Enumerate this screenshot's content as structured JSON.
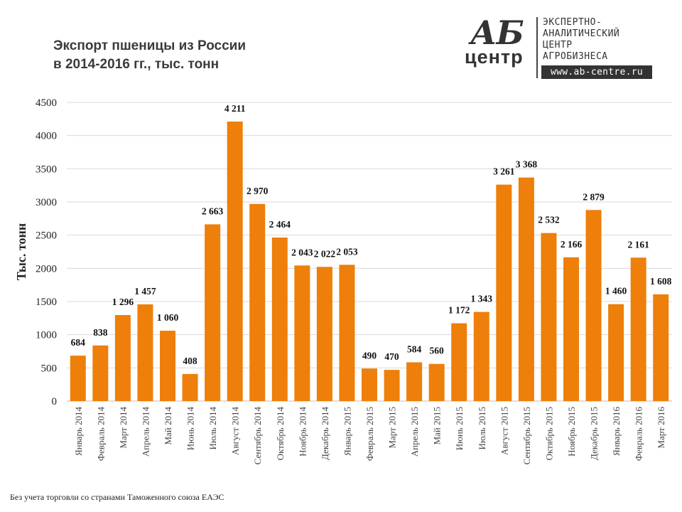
{
  "header": {
    "title_line1": "Экспорт пшеницы из России",
    "title_line2": "в 2014-2016 гг., тыс. тонн"
  },
  "logo": {
    "ab": "АБ",
    "centr": "центр",
    "line1": "ЭКСПЕРТНО-",
    "line2": "АНАЛИТИЧЕСКИЙ",
    "line3": "ЦЕНТР",
    "line4": "АГРОБИЗНЕСА",
    "url": "www.ab-centre.ru"
  },
  "footnote": "Без учета торговли со странами Таможенного союза ЕАЭС",
  "colors": {
    "bar": "#EE7F0A",
    "grid": "#D9D9D9",
    "text": "#222222"
  },
  "chart_data": {
    "type": "bar",
    "title": "Экспорт пшеницы из России в 2014-2016 гг., тыс. тонн",
    "xlabel": "",
    "ylabel": "Тыс. тонн",
    "ylim": [
      0,
      4500
    ],
    "yticks": [
      0,
      500,
      1000,
      1500,
      2000,
      2500,
      3000,
      3500,
      4000,
      4500
    ],
    "grid": true,
    "categories": [
      "Январь 2014",
      "Февраль 2014",
      "Март 2014",
      "Апрель 2014",
      "Май 2014",
      "Июнь 2014",
      "Июль 2014",
      "Август 2014",
      "Сентябрь 2014",
      "Октябрь 2014",
      "Ноябрь 2014",
      "Декабрь 2014",
      "Январь 2015",
      "Февраль 2015",
      "Март 2015",
      "Апрель 2015",
      "Май 2015",
      "Июнь 2015",
      "Июль 2015",
      "Август 2015",
      "Сентябрь 2015",
      "Октябрь 2015",
      "Ноябрь 2015",
      "Декабрь 2015",
      "Январь 2016",
      "Февраль 2016",
      "Март 2016"
    ],
    "values": [
      684,
      838,
      1296,
      1457,
      1060,
      408,
      2663,
      4211,
      2970,
      2464,
      2043,
      2022,
      2053,
      490,
      470,
      584,
      560,
      1172,
      1343,
      3261,
      3368,
      2532,
      2166,
      2879,
      1460,
      2161,
      1608
    ],
    "data_labels": [
      "684",
      "838",
      "1 296",
      "1 457",
      "1 060",
      "408",
      "2 663",
      "4 211",
      "2 970",
      "2 464",
      "2 043",
      "2 022",
      "2 053",
      "490",
      "470",
      "584",
      "560",
      "1 172",
      "1 343",
      "3 261",
      "3 368",
      "2 532",
      "2 166",
      "2 879",
      "1 460",
      "2 161",
      "1 608"
    ]
  }
}
